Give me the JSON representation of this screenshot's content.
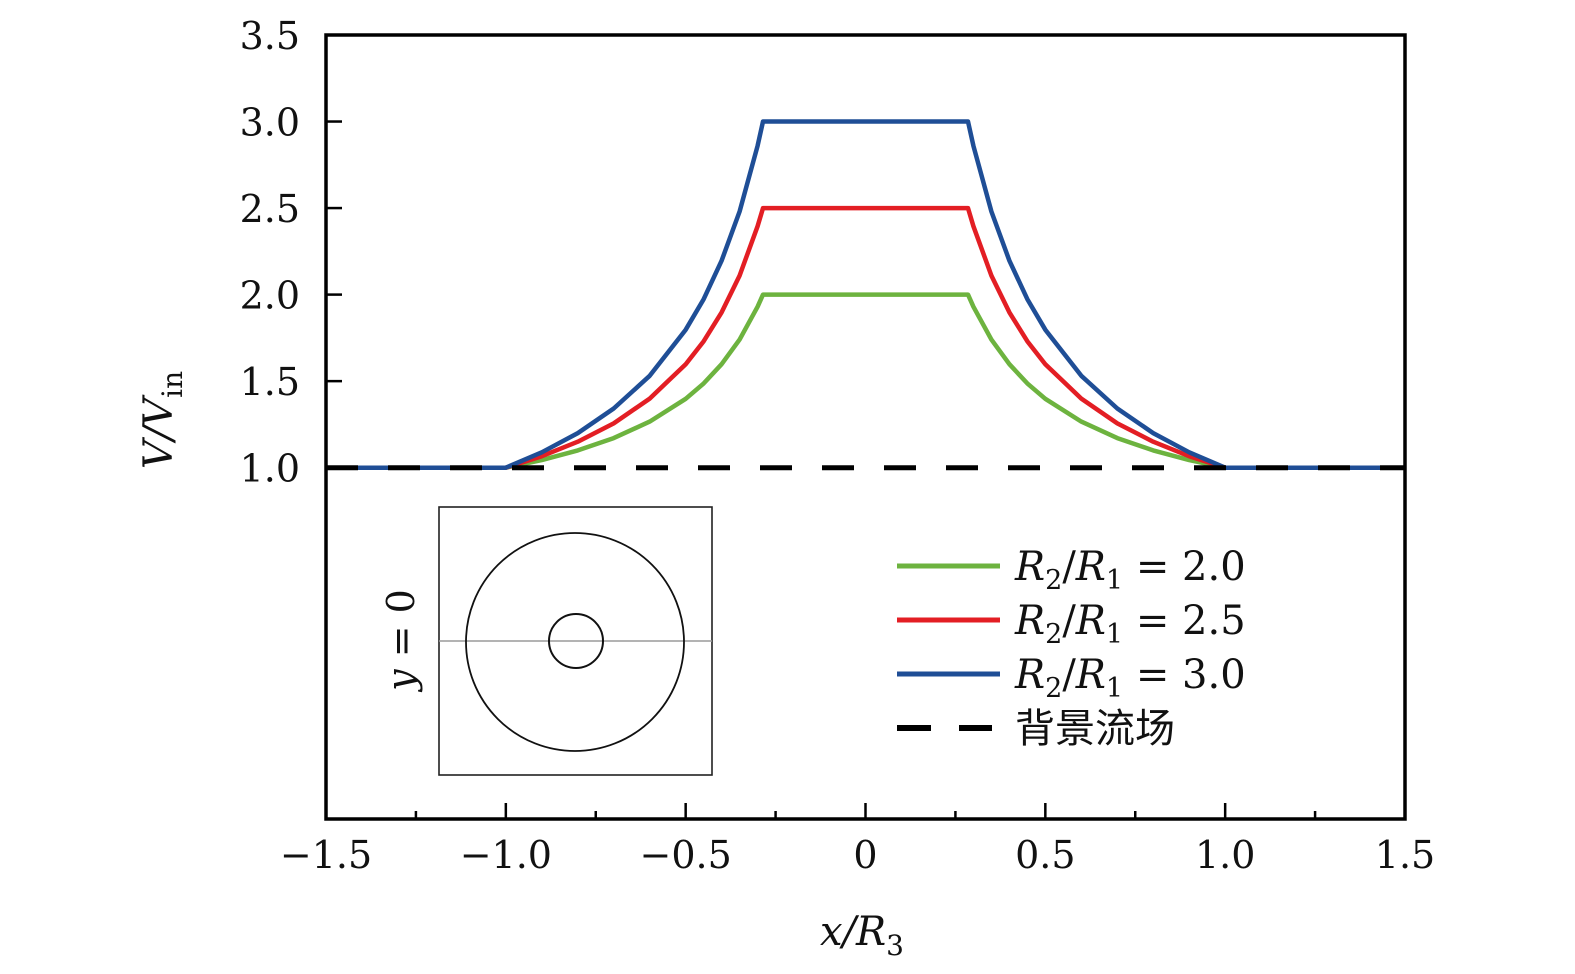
{
  "chart_data": {
    "type": "line",
    "title": "",
    "xlabel": "x/R3",
    "xlabel_parts": {
      "main": "x/R",
      "sub": "3"
    },
    "ylabel": "V/Vin",
    "ylabel_parts": {
      "main": "V/V",
      "sub": "in"
    },
    "xlim": [
      -1.5,
      1.5
    ],
    "ylim": [
      -1.03,
      3.5
    ],
    "xticks": [
      -1.5,
      -1.0,
      -0.5,
      0,
      0.5,
      1.0,
      1.5
    ],
    "xtick_labels": [
      "−1.5",
      "−1.0",
      "−0.5",
      "0",
      "0.5",
      "1.0",
      "1.5"
    ],
    "xminor_ticks": [
      -1.25,
      -0.75,
      -0.25,
      0.25,
      0.75,
      1.25
    ],
    "yticks": [
      1.0,
      1.5,
      2.0,
      2.5,
      3.0,
      3.5
    ],
    "ytick_labels": [
      "1.0",
      "1.5",
      "2.0",
      "2.5",
      "3.0",
      "3.5"
    ],
    "grid": false,
    "legend_position": "lower-right",
    "x": [
      -1.5,
      -1.25,
      -1.0,
      -0.9,
      -0.8,
      -0.7,
      -0.6,
      -0.5,
      -0.45,
      -0.4,
      -0.35,
      -0.3,
      -0.285,
      0,
      0.285,
      0.3,
      0.35,
      0.4,
      0.45,
      0.5,
      0.6,
      0.7,
      0.8,
      0.9,
      1.0,
      1.25,
      1.5
    ],
    "series": [
      {
        "name": "R2/R1 = 2.0",
        "label_parts": {
          "r2": "R",
          "r2sub": "2",
          "r1": "R",
          "r1sub": "1",
          "value": "= 2.0"
        },
        "color": "#6db33f",
        "style": "solid",
        "values": [
          1.0,
          1.0,
          1.0,
          1.044,
          1.1,
          1.171,
          1.266,
          1.398,
          1.487,
          1.598,
          1.74,
          1.93,
          2.0,
          2.0,
          2.0,
          1.93,
          1.74,
          1.598,
          1.487,
          1.398,
          1.266,
          1.171,
          1.1,
          1.044,
          1.0,
          1.0,
          1.0
        ]
      },
      {
        "name": "R2/R1 = 2.5",
        "label_parts": {
          "r2": "R",
          "r2sub": "2",
          "r1": "R",
          "r1sub": "1",
          "value": "= 2.5"
        },
        "color": "#e31e24",
        "style": "solid",
        "values": [
          1.0,
          1.0,
          1.0,
          1.066,
          1.15,
          1.256,
          1.399,
          1.598,
          1.731,
          1.897,
          2.11,
          2.395,
          2.5,
          2.5,
          2.5,
          2.395,
          2.11,
          1.897,
          1.731,
          1.598,
          1.399,
          1.256,
          1.15,
          1.066,
          1.0,
          1.0,
          1.0
        ]
      },
      {
        "name": "R2/R1 = 3.0",
        "label_parts": {
          "r2": "R",
          "r2sub": "2",
          "r1": "R",
          "r1sub": "1",
          "value": "= 3.0"
        },
        "color": "#1f4e96",
        "style": "solid",
        "values": [
          1.0,
          1.0,
          1.0,
          1.089,
          1.2,
          1.342,
          1.531,
          1.797,
          1.974,
          2.196,
          2.48,
          2.86,
          3.0,
          3.0,
          3.0,
          2.86,
          2.48,
          2.196,
          1.974,
          1.797,
          1.531,
          1.342,
          1.2,
          1.089,
          1.0,
          1.0,
          1.0
        ]
      },
      {
        "name": "背景流场",
        "color": "#000000",
        "style": "dashed",
        "values": [
          1.0,
          1.0,
          1.0,
          1.0,
          1.0,
          1.0,
          1.0,
          1.0,
          1.0,
          1.0,
          1.0,
          1.0,
          1.0,
          1.0,
          1.0,
          1.0,
          1.0,
          1.0,
          1.0,
          1.0,
          1.0,
          1.0,
          1.0,
          1.0,
          1.0,
          1.0,
          1.0
        ]
      }
    ],
    "inset": {
      "label": "y = 0",
      "label_parts": {
        "var": "y",
        "rest": " = 0"
      },
      "description": "schematic: outer circle, inner circle, horizontal line y = 0"
    }
  }
}
